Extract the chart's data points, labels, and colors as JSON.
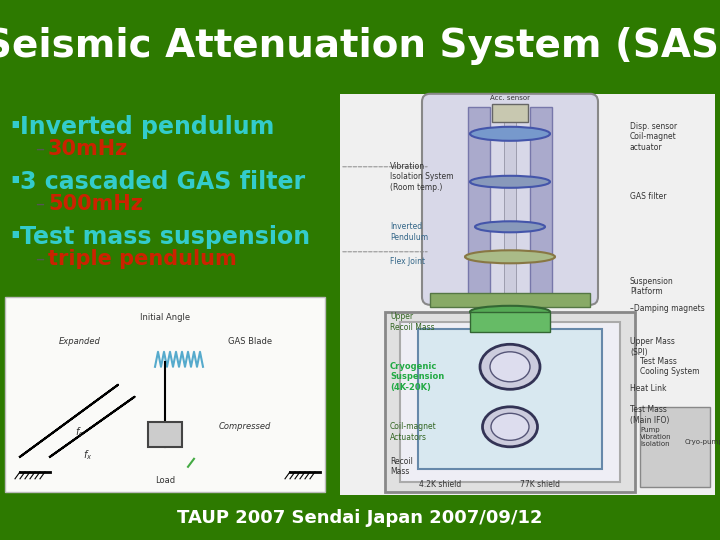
{
  "title": "Seismic Attenuation System (SAS)",
  "title_color": "#FFFFFF",
  "title_bg_color": "#2D7A00",
  "content_bg_color": "#FFFFF0",
  "footer_text": "TAUP 2007 Sendai Japan 2007/09/12",
  "footer_bg_color": "#2D7A00",
  "footer_color": "#FFFFFF",
  "bullet_color": "#33CCCC",
  "sub_color": "#CC2200",
  "bullets": [
    {
      "text": "Inverted pendulum",
      "sub": "30mHz"
    },
    {
      "text": "3 cascaded GAS filter",
      "sub": "500mHz"
    },
    {
      "text": "Test mass suspension",
      "sub": "triple pendulum"
    }
  ],
  "title_fontsize": 28,
  "bullet_fontsize": 17,
  "sub_fontsize": 15,
  "footer_fontsize": 13
}
